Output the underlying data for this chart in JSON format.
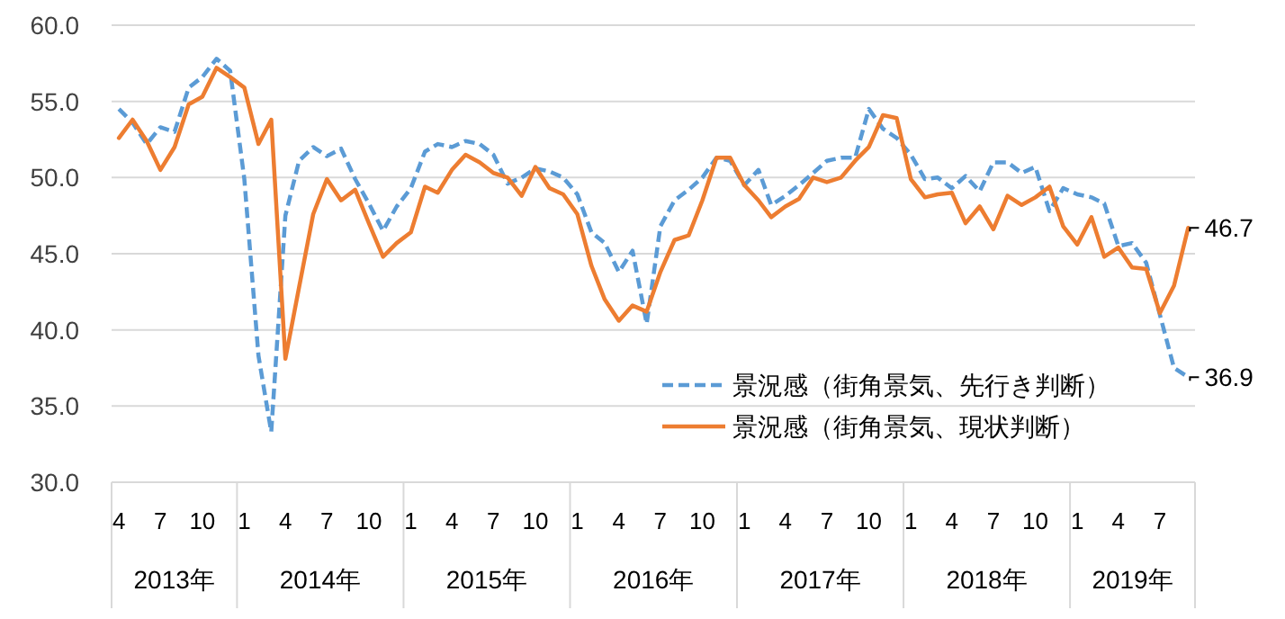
{
  "chart_data": {
    "type": "line",
    "x": [
      "2013-04",
      "2013-05",
      "2013-06",
      "2013-07",
      "2013-08",
      "2013-09",
      "2013-10",
      "2013-11",
      "2013-12",
      "2014-01",
      "2014-02",
      "2014-03",
      "2014-04",
      "2014-05",
      "2014-06",
      "2014-07",
      "2014-08",
      "2014-09",
      "2014-10",
      "2014-11",
      "2014-12",
      "2015-01",
      "2015-02",
      "2015-03",
      "2015-04",
      "2015-05",
      "2015-06",
      "2015-07",
      "2015-08",
      "2015-09",
      "2015-10",
      "2015-11",
      "2015-12",
      "2016-01",
      "2016-02",
      "2016-03",
      "2016-04",
      "2016-05",
      "2016-06",
      "2016-07",
      "2016-08",
      "2016-09",
      "2016-10",
      "2016-11",
      "2016-12",
      "2017-01",
      "2017-02",
      "2017-03",
      "2017-04",
      "2017-05",
      "2017-06",
      "2017-07",
      "2017-08",
      "2017-09",
      "2017-10",
      "2017-11",
      "2017-12",
      "2018-01",
      "2018-02",
      "2018-03",
      "2018-04",
      "2018-05",
      "2018-06",
      "2018-07",
      "2018-08",
      "2018-09",
      "2018-10",
      "2018-11",
      "2018-12",
      "2019-01",
      "2019-02",
      "2019-03",
      "2019-04",
      "2019-05",
      "2019-06",
      "2019-07",
      "2019-08",
      "2019-09"
    ],
    "series": [
      {
        "name": "景況感（街角景気、先行き判断）",
        "color": "#5b9bd5",
        "line_style": "dashed",
        "values": [
          54.5,
          53.6,
          52.2,
          53.3,
          53.0,
          55.9,
          56.6,
          57.8,
          57.0,
          49.9,
          38.3,
          33.3,
          47.5,
          51.1,
          52.0,
          51.4,
          51.9,
          49.9,
          48.3,
          46.5,
          48.1,
          49.3,
          51.7,
          52.2,
          52.0,
          52.4,
          52.2,
          51.5,
          49.6,
          50.0,
          50.6,
          50.4,
          50.0,
          48.9,
          46.4,
          45.7,
          43.8,
          45.2,
          40.4,
          46.8,
          48.5,
          49.2,
          50.0,
          51.3,
          51.1,
          49.5,
          50.5,
          48.2,
          48.8,
          49.5,
          50.3,
          51.1,
          51.3,
          51.3,
          54.5,
          53.2,
          52.6,
          51.5,
          49.9,
          50.0,
          49.3,
          50.1,
          49.1,
          51.0,
          51.0,
          50.3,
          50.7,
          47.8,
          49.3,
          48.9,
          48.7,
          48.3,
          45.5,
          45.7,
          44.4,
          41.0,
          37.5,
          36.9
        ],
        "value_labels": [
          null,
          null,
          null,
          null,
          null,
          null,
          null,
          null,
          null,
          null,
          null,
          null,
          null,
          null,
          null,
          null,
          null,
          null,
          null,
          null,
          null,
          null,
          null,
          null,
          null,
          null,
          null,
          null,
          null,
          null,
          null,
          null,
          null,
          null,
          null,
          null,
          null,
          null,
          null,
          null,
          null,
          null,
          null,
          null,
          null,
          null,
          null,
          null,
          null,
          null,
          null,
          null,
          null,
          null,
          null,
          null,
          null,
          null,
          null,
          null,
          null,
          null,
          null,
          null,
          null,
          null,
          null,
          null,
          null,
          null,
          null,
          null,
          null,
          null,
          null,
          null,
          null,
          "36.9"
        ]
      },
      {
        "name": "景況感（街角景気、現状判断）",
        "color": "#ed7d31",
        "line_style": "solid",
        "values": [
          52.6,
          53.8,
          52.4,
          50.5,
          52.0,
          54.8,
          55.3,
          57.2,
          56.6,
          55.9,
          52.2,
          53.8,
          38.1,
          42.8,
          47.6,
          49.9,
          48.5,
          49.2,
          47.0,
          44.8,
          45.7,
          46.4,
          49.4,
          49.0,
          50.5,
          51.5,
          51.0,
          50.3,
          50.0,
          48.8,
          50.7,
          49.3,
          48.9,
          47.6,
          44.2,
          42.0,
          40.6,
          41.6,
          41.2,
          43.8,
          45.9,
          46.2,
          48.5,
          51.3,
          51.3,
          49.5,
          48.5,
          47.4,
          48.1,
          48.6,
          50.0,
          49.7,
          50.0,
          51.1,
          52.0,
          54.1,
          53.9,
          49.9,
          48.7,
          48.9,
          49.0,
          47.0,
          48.1,
          46.6,
          48.8,
          48.2,
          48.7,
          49.4,
          46.8,
          45.6,
          47.4,
          44.8,
          45.4,
          44.1,
          44.0,
          41.1,
          42.9,
          46.7
        ],
        "value_labels": [
          null,
          null,
          null,
          null,
          null,
          null,
          null,
          null,
          null,
          null,
          null,
          null,
          null,
          null,
          null,
          null,
          null,
          null,
          null,
          null,
          null,
          null,
          null,
          null,
          null,
          null,
          null,
          null,
          null,
          null,
          null,
          null,
          null,
          null,
          null,
          null,
          null,
          null,
          null,
          null,
          null,
          null,
          null,
          null,
          null,
          null,
          null,
          null,
          null,
          null,
          null,
          null,
          null,
          null,
          null,
          null,
          null,
          null,
          null,
          null,
          null,
          null,
          null,
          null,
          null,
          null,
          null,
          null,
          null,
          null,
          null,
          null,
          null,
          null,
          null,
          null,
          null,
          "46.7"
        ]
      }
    ],
    "xticks": [
      {
        "value": "2013-04",
        "label": "4"
      },
      {
        "value": "2013-07",
        "label": "7"
      },
      {
        "value": "2013-10",
        "label": "10"
      },
      {
        "value": "2014-01",
        "label": "1"
      },
      {
        "value": "2014-04",
        "label": "4"
      },
      {
        "value": "2014-07",
        "label": "7"
      },
      {
        "value": "2014-10",
        "label": "10"
      },
      {
        "value": "2015-01",
        "label": "1"
      },
      {
        "value": "2015-04",
        "label": "4"
      },
      {
        "value": "2015-07",
        "label": "7"
      },
      {
        "value": "2015-10",
        "label": "10"
      },
      {
        "value": "2016-01",
        "label": "1"
      },
      {
        "value": "2016-04",
        "label": "4"
      },
      {
        "value": "2016-07",
        "label": "7"
      },
      {
        "value": "2016-10",
        "label": "10"
      },
      {
        "value": "2017-01",
        "label": "1"
      },
      {
        "value": "2017-04",
        "label": "4"
      },
      {
        "value": "2017-07",
        "label": "7"
      },
      {
        "value": "2017-10",
        "label": "10"
      },
      {
        "value": "2018-01",
        "label": "1"
      },
      {
        "value": "2018-04",
        "label": "4"
      },
      {
        "value": "2018-07",
        "label": "7"
      },
      {
        "value": "2018-10",
        "label": "10"
      },
      {
        "value": "2019-01",
        "label": "1"
      },
      {
        "value": "2019-04",
        "label": "4"
      },
      {
        "value": "2019-07",
        "label": "7"
      }
    ],
    "annotations": [
      "2013年",
      "2014年",
      "2015年",
      "2016年",
      "2017年",
      "2018年",
      "2019年"
    ],
    "ylim": [
      30,
      60
    ],
    "yticks": [
      {
        "value": 30,
        "label": "30.0"
      },
      {
        "value": 35,
        "label": "35.0"
      },
      {
        "value": 40,
        "label": "40.0"
      },
      {
        "value": 45,
        "label": "45.0"
      },
      {
        "value": 50,
        "label": "50.0"
      },
      {
        "value": 55,
        "label": "55.0"
      },
      {
        "value": 60,
        "label": "60.0"
      }
    ],
    "xlim": [
      "2013-03-16",
      "2019-09-16"
    ],
    "grid": "y",
    "legend": "bottom right",
    "marker": "none"
  }
}
